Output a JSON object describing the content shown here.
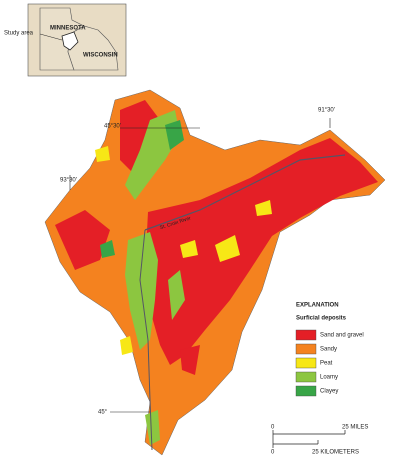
{
  "inset": {
    "label": "Study area",
    "states": [
      "MINNESOTA",
      "WISCONSIN"
    ]
  },
  "coordinates": [
    "91°30'",
    "45°30'",
    "93°30'",
    "45°"
  ],
  "river_label": "St. Croix River",
  "explanation": {
    "title": "EXPLANATION",
    "subtitle": "Surficial deposits",
    "items": [
      {
        "label": "Sand and gravel",
        "color": "#e41f26"
      },
      {
        "label": "Sandy",
        "color": "#f4821f"
      },
      {
        "label": "Peat",
        "color": "#f7e716"
      },
      {
        "label": "Loamy",
        "color": "#8cc640"
      },
      {
        "label": "Clayey",
        "color": "#38a547"
      }
    ]
  },
  "scale": {
    "miles": [
      "0",
      "25 MILES"
    ],
    "kilometers": [
      "0",
      "25 KILOMETERS"
    ]
  }
}
